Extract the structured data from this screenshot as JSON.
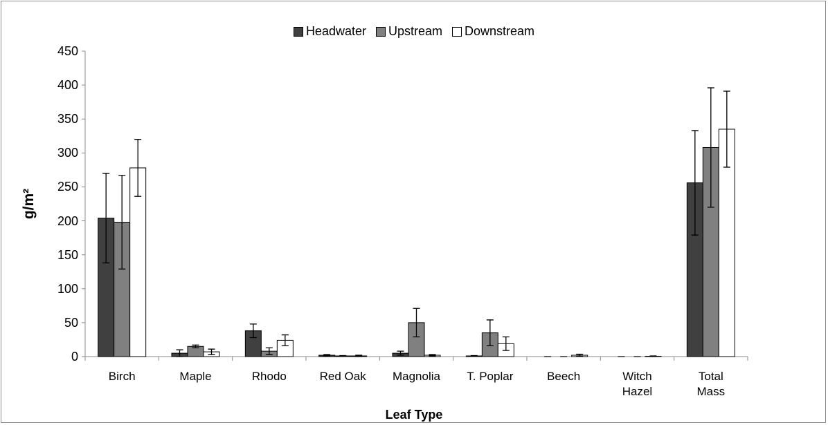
{
  "chart_data": {
    "type": "bar",
    "x_label": "Leaf Type",
    "y_label": "g/m²",
    "categories": [
      "Birch",
      "Maple",
      "Rhodo",
      "Red Oak",
      "Magnolia",
      "T. Poplar",
      "Beech",
      "Witch\nHazel",
      "Total\nMass"
    ],
    "series": [
      {
        "name": "Headwater",
        "color": "#404040",
        "values": [
          204,
          5,
          38,
          2,
          5,
          1,
          0,
          0,
          256
        ],
        "errors": [
          66,
          5,
          10,
          1,
          3,
          0.5,
          0,
          0,
          77
        ]
      },
      {
        "name": "Upstream",
        "color": "#808080",
        "values": [
          198,
          15,
          8,
          1,
          50,
          35,
          0,
          0,
          308
        ],
        "errors": [
          69,
          2,
          5,
          0.5,
          21,
          19,
          0,
          0,
          88
        ]
      },
      {
        "name": "Downstream",
        "color": "#ffffff",
        "values": [
          278,
          7,
          24,
          1,
          2,
          19,
          2,
          0.5,
          335
        ],
        "errors": [
          42,
          4,
          8,
          1,
          1,
          10,
          1.5,
          0.5,
          56
        ]
      }
    ],
    "ylim": [
      0,
      450
    ],
    "yticks": [
      0,
      50,
      100,
      150,
      200,
      250,
      300,
      350,
      400,
      450
    ],
    "grid": false,
    "legend": "top"
  }
}
